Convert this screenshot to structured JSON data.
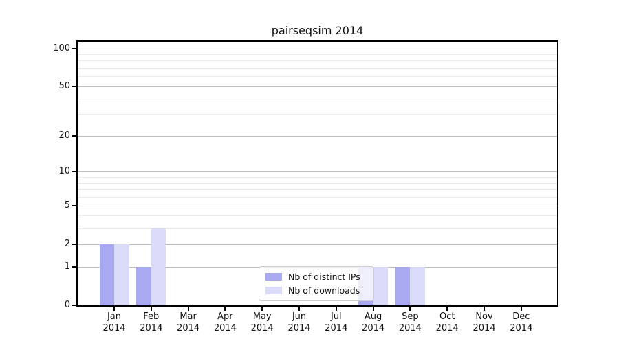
{
  "chart_data": {
    "type": "bar",
    "title": "pairseqsim 2014",
    "categories": [
      "Jan",
      "Feb",
      "Mar",
      "Apr",
      "May",
      "Jun",
      "Jul",
      "Aug",
      "Sep",
      "Oct",
      "Nov",
      "Dec"
    ],
    "category_year": "2014",
    "series": [
      {
        "name": "Nb of distinct IPs",
        "color": "#a9a9f2",
        "values": [
          2,
          1,
          0,
          0,
          0,
          0,
          0,
          1,
          1,
          0,
          0,
          0
        ]
      },
      {
        "name": "Nb of downloads",
        "color": "#d9dbf8",
        "values": [
          2,
          3,
          0,
          0,
          0,
          0,
          0,
          1,
          1,
          0,
          0,
          0
        ]
      }
    ],
    "y_axis": {
      "scale": "log1p",
      "min": 0,
      "max": 100,
      "major_ticks": [
        0,
        1,
        2,
        5,
        10,
        20,
        50,
        100
      ],
      "minor_gridlines": [
        3,
        4,
        6,
        7,
        8,
        9,
        30,
        40,
        60,
        70,
        80,
        90
      ]
    },
    "legend": {
      "position": "lower center",
      "frame_alpha": 0.8
    },
    "grid": true,
    "colors": {
      "major_grid": "#bdbdbd",
      "minor_grid": "#ececec",
      "spine": "#000000",
      "background": "#ffffff"
    }
  }
}
